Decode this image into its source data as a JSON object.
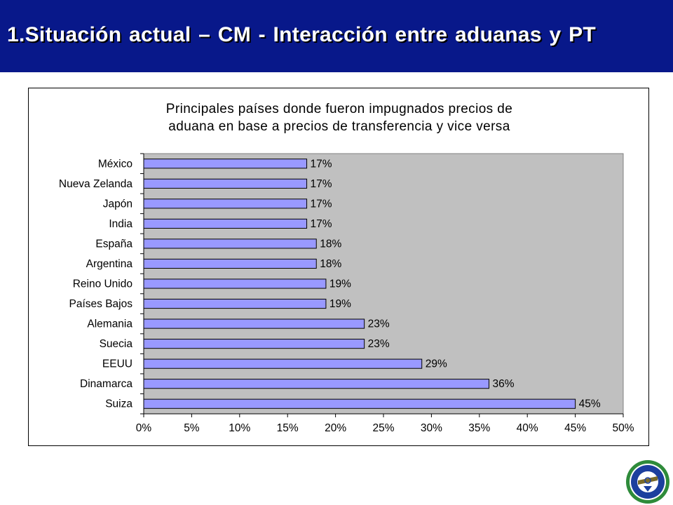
{
  "header": {
    "title": "1.Situación actual – CM - Interacción entre aduanas y PT"
  },
  "colors": {
    "header_bg": "#08188a",
    "plot_bg": "#c0c0c0",
    "bar_fill": "#9999ff",
    "bar_stroke": "#000000"
  },
  "logo": {
    "icon": "ciat-seal-icon"
  },
  "chart_data": {
    "type": "bar",
    "orientation": "horizontal",
    "title_lines": [
      "Principales países donde fueron impugnados precios de",
      "aduana en base a precios de transferencia y vice versa"
    ],
    "categories": [
      "México",
      "Nueva Zelanda",
      "Japón",
      "India",
      "España",
      "Argentina",
      "Reino Unido",
      "Países Bajos",
      "Alemania",
      "Suecia",
      "EEUU",
      "Dinamarca",
      "Suiza"
    ],
    "values": [
      17,
      17,
      17,
      17,
      18,
      18,
      19,
      19,
      23,
      23,
      29,
      36,
      45
    ],
    "data_labels": [
      "17%",
      "17%",
      "17%",
      "17%",
      "18%",
      "18%",
      "19%",
      "19%",
      "23%",
      "23%",
      "29%",
      "36%",
      "45%"
    ],
    "x_ticks": [
      "0%",
      "5%",
      "10%",
      "15%",
      "20%",
      "25%",
      "30%",
      "35%",
      "40%",
      "45%",
      "50%"
    ],
    "xlim": [
      0,
      50
    ],
    "xlabel": "",
    "ylabel": "",
    "grid": false,
    "legend": "none"
  }
}
